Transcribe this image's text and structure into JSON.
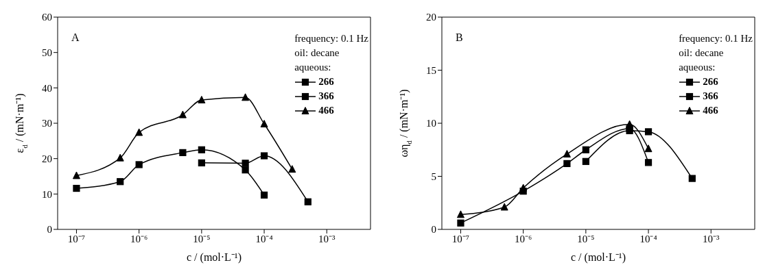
{
  "chart_data": [
    {
      "type": "line",
      "annotations": [
        "A"
      ],
      "legend_title": "frequency: 0.1 Hz\noil: decane\naqueous:",
      "legend": "top right",
      "xlabel": "c / (mol·L⁻¹)",
      "ylabel": "ε$_{d}$ / (mN·m⁻¹)",
      "log": "x",
      "grid": false,
      "xlim": [
        5e-08,
        0.005
      ],
      "xticks": [
        {
          "value": 1e-07,
          "label": "10⁻⁷"
        },
        {
          "value": 1e-06,
          "label": "10⁻⁶"
        },
        {
          "value": 1e-05,
          "label": "10⁻⁵"
        },
        {
          "value": 0.0001,
          "label": "10⁻⁴"
        },
        {
          "value": 0.001,
          "label": "10⁻³"
        }
      ],
      "ylim": [
        0,
        60
      ],
      "yticks": [
        0,
        10,
        20,
        30,
        40,
        50,
        60
      ],
      "series": [
        {
          "name": "266",
          "color": "#000000",
          "marker": "square",
          "x": [
            1e-05,
            5e-05,
            0.0001,
            0.0005
          ],
          "values": [
            18.8,
            18.7,
            20.8,
            7.8
          ]
        },
        {
          "name": "366",
          "color": "#000000",
          "marker": "square",
          "x": [
            1e-07,
            5e-07,
            1e-06,
            5e-06,
            1e-05,
            5e-05,
            0.0001
          ],
          "values": [
            11.6,
            13.5,
            18.3,
            21.7,
            22.5,
            16.8,
            9.7
          ]
        },
        {
          "name": "466",
          "color": "#000000",
          "marker": "triangle",
          "x": [
            1e-07,
            5e-07,
            1e-06,
            5e-06,
            1e-05,
            5e-05,
            0.0001,
            0.00028
          ],
          "values": [
            15.2,
            20.2,
            27.4,
            32.4,
            36.6,
            37.3,
            29.8,
            17.0
          ]
        }
      ]
    },
    {
      "type": "line",
      "annotations": [
        "B"
      ],
      "legend_title": "frequency: 0.1 Hz\noil: decane\naqueous:",
      "legend": "top right",
      "xlabel": "c / (mol·L⁻¹)",
      "ylabel": "ωη$_{d}$ / (mN·m⁻¹)",
      "log": "x",
      "grid": false,
      "xlim": [
        5e-08,
        0.005
      ],
      "xticks": [
        {
          "value": 1e-07,
          "label": "10⁻⁷"
        },
        {
          "value": 1e-06,
          "label": "10⁻⁶"
        },
        {
          "value": 1e-05,
          "label": "10⁻⁵"
        },
        {
          "value": 0.0001,
          "label": "10⁻⁴"
        },
        {
          "value": 0.001,
          "label": "10⁻³"
        }
      ],
      "ylim": [
        0,
        20
      ],
      "yticks": [
        0,
        5,
        10,
        15,
        20
      ],
      "series": [
        {
          "name": "266",
          "color": "#000000",
          "marker": "square",
          "x": [
            1e-05,
            5e-05,
            0.0001,
            0.0005
          ],
          "values": [
            6.4,
            9.3,
            9.2,
            4.8
          ]
        },
        {
          "name": "366",
          "color": "#000000",
          "marker": "square",
          "x": [
            1e-07,
            1e-06,
            5e-06,
            1e-05,
            5e-05,
            0.0001
          ],
          "values": [
            0.6,
            3.6,
            6.2,
            7.5,
            9.5,
            6.3
          ]
        },
        {
          "name": "466",
          "color": "#000000",
          "marker": "triangle",
          "x": [
            1e-07,
            5e-07,
            1e-06,
            5e-06,
            5e-05,
            0.0001
          ],
          "values": [
            1.4,
            2.1,
            3.9,
            7.1,
            9.9,
            7.6
          ]
        }
      ]
    }
  ]
}
